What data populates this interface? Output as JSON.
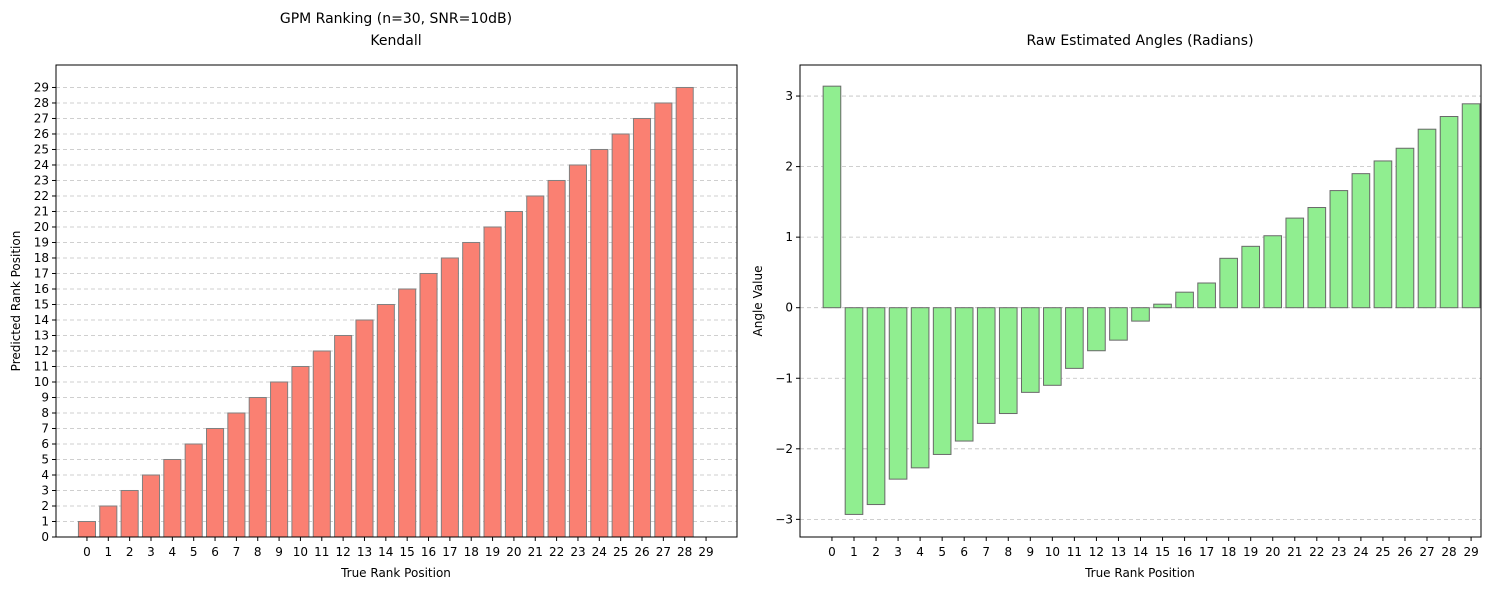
{
  "chart_data": [
    {
      "type": "bar",
      "title": "GPM Ranking (n=30, SNR=10dB)",
      "subtitle": "Kendall",
      "xlabel": "True Rank Position",
      "ylabel": "Predicted Rank Position",
      "categories": [
        "0",
        "1",
        "2",
        "3",
        "4",
        "5",
        "6",
        "7",
        "8",
        "9",
        "10",
        "11",
        "12",
        "13",
        "14",
        "15",
        "16",
        "17",
        "18",
        "19",
        "20",
        "21",
        "22",
        "23",
        "24",
        "25",
        "26",
        "27",
        "28",
        "29"
      ],
      "values": [
        1,
        2,
        3,
        4,
        5,
        6,
        7,
        8,
        9,
        10,
        11,
        12,
        13,
        14,
        15,
        16,
        17,
        18,
        19,
        20,
        21,
        22,
        23,
        24,
        25,
        26,
        27,
        28,
        29,
        0
      ],
      "yticks": [
        0,
        1,
        2,
        3,
        4,
        5,
        6,
        7,
        8,
        9,
        10,
        11,
        12,
        13,
        14,
        15,
        16,
        17,
        18,
        19,
        20,
        21,
        22,
        23,
        24,
        25,
        26,
        27,
        28,
        29
      ],
      "ylim": [
        0,
        30.45
      ],
      "xlim": [
        -1.45,
        30.45
      ],
      "grid": "y-dashed",
      "bar_color": "#fa8072",
      "edge_color": "#808080"
    },
    {
      "type": "bar",
      "title": "Raw Estimated Angles (Radians)",
      "xlabel": "True Rank Position",
      "ylabel": "Angle Value",
      "categories": [
        "0",
        "1",
        "2",
        "3",
        "4",
        "5",
        "6",
        "7",
        "8",
        "9",
        "10",
        "11",
        "12",
        "13",
        "14",
        "15",
        "16",
        "17",
        "18",
        "19",
        "20",
        "21",
        "22",
        "23",
        "24",
        "25",
        "26",
        "27",
        "28",
        "29"
      ],
      "values": [
        3.14,
        -2.93,
        -2.79,
        -2.43,
        -2.27,
        -2.08,
        -1.89,
        -1.64,
        -1.5,
        -1.2,
        -1.1,
        -0.86,
        -0.61,
        -0.46,
        -0.19,
        0.05,
        0.22,
        0.35,
        0.7,
        0.87,
        1.02,
        1.27,
        1.42,
        1.66,
        1.9,
        2.08,
        2.26,
        2.53,
        2.71,
        2.89
      ],
      "yticks": [
        -3,
        -2,
        -1,
        0,
        1,
        2,
        3
      ],
      "ylim": [
        -3.25,
        3.44
      ],
      "xlim": [
        -1.45,
        29.45
      ],
      "grid": "y-dashed",
      "bar_color": "#90ee90",
      "edge_color": "#696969"
    }
  ]
}
